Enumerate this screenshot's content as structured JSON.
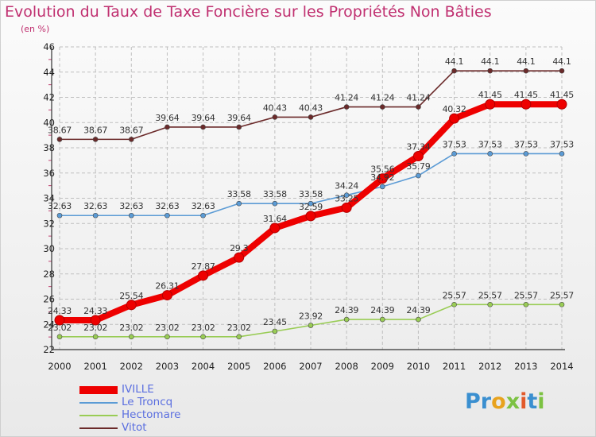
{
  "title": "Evolution du Taux de Taxe Foncière sur les Propriétés Non Bâties",
  "unit_label": "(en %)",
  "logo": {
    "letters": [
      {
        "ch": "P",
        "color": "#3a8fd0"
      },
      {
        "ch": "r",
        "color": "#3a8fd0"
      },
      {
        "ch": "o",
        "color": "#e8a31e"
      },
      {
        "ch": "x",
        "color": "#7cc242"
      },
      {
        "ch": "i",
        "color": "#e25a2b"
      },
      {
        "ch": "t",
        "color": "#3a8fd0"
      },
      {
        "ch": "i",
        "color": "#7cc242"
      }
    ]
  },
  "chart_data": {
    "type": "line",
    "x": [
      "2000",
      "2001",
      "2002",
      "2003",
      "2004",
      "2005",
      "2006",
      "2007",
      "2008",
      "2009",
      "2010",
      "2011",
      "2012",
      "2013",
      "2014"
    ],
    "ylim": [
      22,
      46
    ],
    "yticks": [
      "22",
      "24",
      "26",
      "28",
      "30",
      "32",
      "34",
      "36",
      "38",
      "40",
      "42",
      "44",
      "46"
    ],
    "grid": true,
    "legend_position": "bottom-left",
    "series": [
      {
        "name": "IVILLE",
        "color": "#ee0000",
        "values": [
          24.33,
          24.33,
          25.54,
          26.31,
          27.87,
          29.3,
          31.64,
          32.59,
          33.25,
          35.56,
          37.34,
          40.32,
          41.45,
          41.45,
          41.45
        ],
        "labels": [
          "24.33",
          "24.33",
          "25.54",
          "26.31",
          "27.87",
          "29.3",
          "31.64",
          "32.59",
          "33.25",
          "35.56",
          "37.34",
          "40.32",
          "41.45",
          "41.45",
          "41.45"
        ]
      },
      {
        "name": "Le Troncq",
        "color": "#5b9bd5",
        "values": [
          32.63,
          32.63,
          32.63,
          32.63,
          32.63,
          33.58,
          33.58,
          33.58,
          34.24,
          34.92,
          35.79,
          37.53,
          37.53,
          37.53,
          37.53
        ],
        "labels": [
          "32.63",
          "32.63",
          "32.63",
          "32.63",
          "32.63",
          "33.58",
          "33.58",
          "33.58",
          "34.24",
          "34.92",
          "35.79",
          "37.53",
          "37.53",
          "37.53",
          "37.53"
        ]
      },
      {
        "name": "Hectomare",
        "color": "#99cc55",
        "values": [
          23.02,
          23.02,
          23.02,
          23.02,
          23.02,
          23.02,
          23.45,
          23.92,
          24.39,
          24.39,
          24.39,
          25.57,
          25.57,
          25.57,
          25.57
        ],
        "labels": [
          "23.02",
          "23.02",
          "23.02",
          "23.02",
          "23.02",
          "23.02",
          "23.45",
          "23.92",
          "24.39",
          "24.39",
          "24.39",
          "25.57",
          "25.57",
          "25.57",
          "25.57"
        ]
      },
      {
        "name": "Vitot",
        "color": "#6b2a2a",
        "values": [
          38.67,
          38.67,
          38.67,
          39.64,
          39.64,
          39.64,
          40.43,
          40.43,
          41.24,
          41.24,
          41.24,
          44.1,
          44.1,
          44.1,
          44.1
        ],
        "labels": [
          "38.67",
          "38.67",
          "38.67",
          "39.64",
          "39.64",
          "39.64",
          "40.43",
          "40.43",
          "41.24",
          "41.24",
          "41.24",
          "44.1",
          "44.1",
          "44.1",
          "44.1"
        ]
      }
    ]
  }
}
